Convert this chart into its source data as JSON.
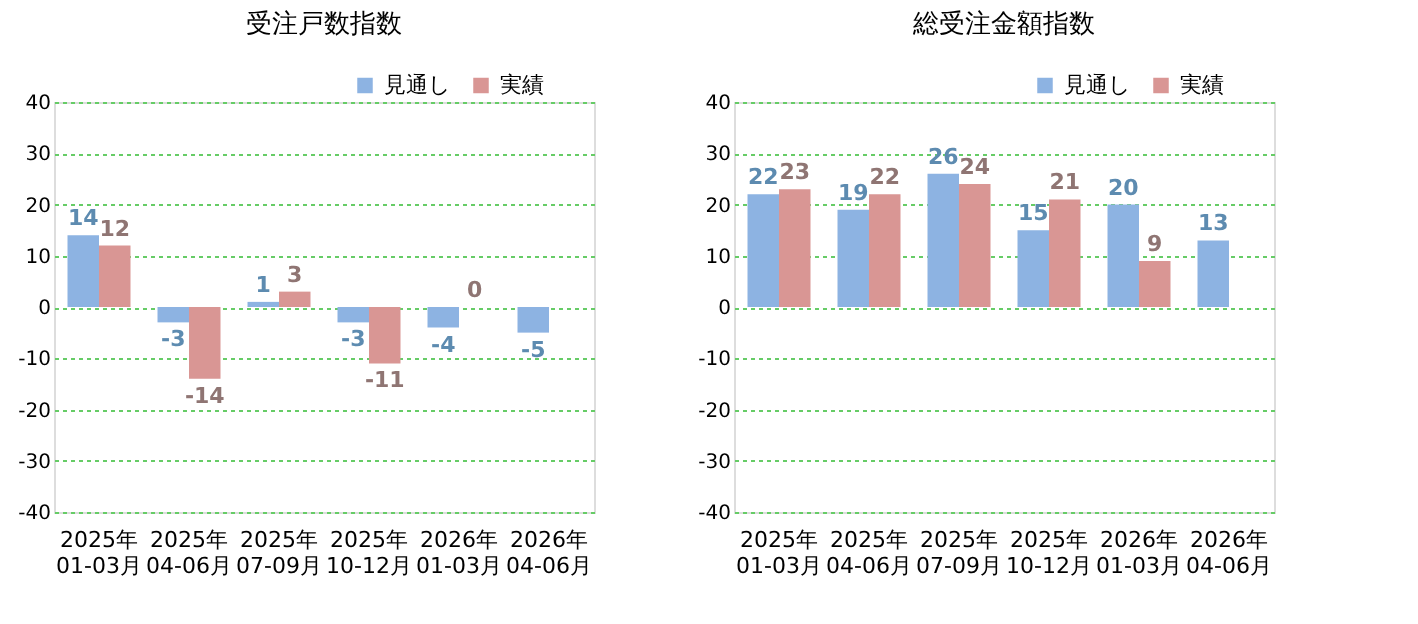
{
  "chart_data": [
    {
      "type": "bar",
      "title": "受注戸数指数",
      "categories": [
        "2025年\n01-03月",
        "2025年\n04-06月",
        "2025年\n07-09月",
        "2025年\n10-12月",
        "2026年\n01-03月",
        "2026年\n04-06月"
      ],
      "series": [
        {
          "name": "見通し",
          "color": "#8db3e2",
          "values": [
            14,
            -3,
            1,
            -3,
            -4,
            -5
          ]
        },
        {
          "name": "実績",
          "color": "#d99694",
          "values": [
            12,
            -14,
            3,
            -11,
            0,
            null
          ]
        }
      ],
      "ylim": [
        -40,
        40
      ],
      "yticks": [
        -40,
        -30,
        -20,
        -10,
        0,
        10,
        20,
        30,
        40
      ],
      "grid": "y",
      "legend": "top right",
      "data_labels": true
    },
    {
      "type": "bar",
      "title": "総受注金額指数",
      "categories": [
        "2025年\n01-03月",
        "2025年\n04-06月",
        "2025年\n07-09月",
        "2025年\n10-12月",
        "2026年\n01-03月",
        "2026年\n04-06月"
      ],
      "series": [
        {
          "name": "見通し",
          "color": "#8db3e2",
          "values": [
            22,
            19,
            26,
            15,
            20,
            13
          ]
        },
        {
          "name": "実績",
          "color": "#d99694",
          "values": [
            23,
            22,
            24,
            21,
            9,
            null
          ]
        }
      ],
      "ylim": [
        -40,
        40
      ],
      "yticks": [
        -40,
        -30,
        -20,
        -10,
        0,
        10,
        20,
        30,
        40
      ],
      "grid": "y",
      "legend": "top right",
      "data_labels": true
    }
  ]
}
